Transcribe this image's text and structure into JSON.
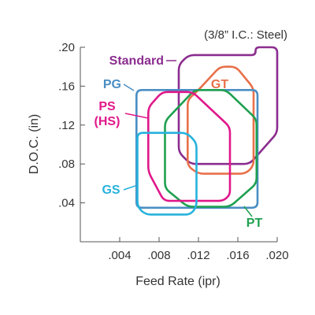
{
  "chart_data": {
    "type": "area",
    "note": "(3/8” I.C.: Steel)",
    "xlabel": "Feed Rate (ipr)",
    "ylabel": "D.O.C. (in)",
    "xlim": [
      0,
      0.02
    ],
    "ylim": [
      0,
      0.2
    ],
    "x_ticks": [
      {
        "value": 0.004,
        "label": ".004"
      },
      {
        "value": 0.008,
        "label": ".008"
      },
      {
        "value": 0.012,
        "label": ".012"
      },
      {
        "value": 0.016,
        "label": ".016"
      },
      {
        "value": 0.02,
        "label": ".020"
      }
    ],
    "y_ticks": [
      {
        "value": 0.04,
        "label": ".04"
      },
      {
        "value": 0.08,
        "label": ".08"
      },
      {
        "value": 0.12,
        "label": ".12"
      },
      {
        "value": 0.16,
        "label": ".16"
      },
      {
        "value": 0.2,
        "label": ".20"
      }
    ],
    "series": [
      {
        "name": "Standard",
        "lines": [
          "Standard"
        ],
        "color": "#8b2d8f",
        "region": [
          [
            0.01,
            0.182
          ],
          [
            0.011,
            0.192
          ],
          [
            0.0178,
            0.192
          ],
          [
            0.0178,
            0.2
          ],
          [
            0.02,
            0.2
          ],
          [
            0.02,
            0.112
          ],
          [
            0.0172,
            0.08
          ],
          [
            0.0112,
            0.08
          ],
          [
            0.01,
            0.092
          ]
        ]
      },
      {
        "name": "GT",
        "lines": [
          "GT"
        ],
        "color": "#e8704a",
        "region": [
          [
            0.0118,
            0.154
          ],
          [
            0.0142,
            0.18
          ],
          [
            0.0158,
            0.18
          ],
          [
            0.0176,
            0.158
          ],
          [
            0.0176,
            0.078
          ],
          [
            0.0168,
            0.07
          ],
          [
            0.012,
            0.07
          ],
          [
            0.0109,
            0.078
          ],
          [
            0.0109,
            0.146
          ]
        ]
      },
      {
        "name": "PG",
        "lines": [
          "PG"
        ],
        "color": "#4a8ec4",
        "region": [
          [
            0.0057,
            0.156
          ],
          [
            0.018,
            0.156
          ],
          [
            0.018,
            0.035
          ],
          [
            0.0057,
            0.035
          ]
        ]
      },
      {
        "name": "PT",
        "lines": [
          "PT"
        ],
        "color": "#1fa050",
        "region": [
          [
            0.0086,
            0.124
          ],
          [
            0.0116,
            0.156
          ],
          [
            0.0148,
            0.156
          ],
          [
            0.0179,
            0.126
          ],
          [
            0.0179,
            0.06
          ],
          [
            0.0152,
            0.036
          ],
          [
            0.0109,
            0.036
          ],
          [
            0.0086,
            0.055
          ]
        ]
      },
      {
        "name": "PS (HS)",
        "lines": [
          "PS",
          "(HS)"
        ],
        "color": "#e0188a",
        "region": [
          [
            0.0069,
            0.138
          ],
          [
            0.0083,
            0.154
          ],
          [
            0.0114,
            0.154
          ],
          [
            0.0152,
            0.118
          ],
          [
            0.0152,
            0.048
          ],
          [
            0.0145,
            0.042
          ],
          [
            0.0085,
            0.042
          ],
          [
            0.0069,
            0.072
          ]
        ]
      },
      {
        "name": "GS",
        "lines": [
          "GS"
        ],
        "color": "#27b2dc",
        "region": [
          [
            0.0058,
            0.112
          ],
          [
            0.0108,
            0.112
          ],
          [
            0.0118,
            0.102
          ],
          [
            0.0118,
            0.036
          ],
          [
            0.0112,
            0.028
          ],
          [
            0.0066,
            0.028
          ],
          [
            0.0058,
            0.036
          ]
        ]
      }
    ]
  }
}
